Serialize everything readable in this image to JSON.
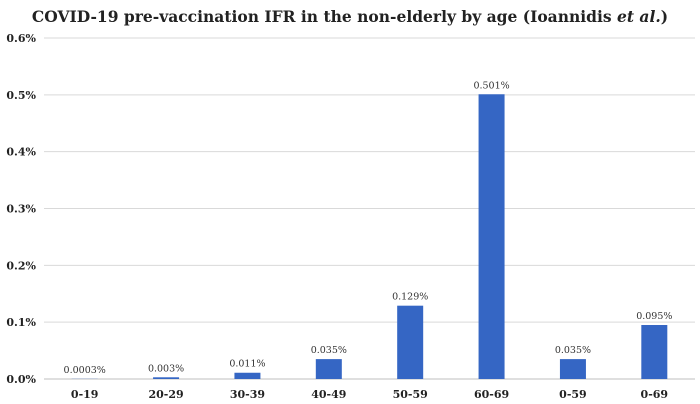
{
  "chart_data": {
    "type": "bar",
    "title_main": "COVID-19 pre-vaccination IFR in the non-elderly by age (Ioannidis ",
    "title_italic": "et al.",
    "title_end": ")",
    "categories": [
      "0-19",
      "20-29",
      "30-39",
      "40-49",
      "50-59",
      "60-69",
      "0-59",
      "0-69"
    ],
    "values": [
      0.0003,
      0.003,
      0.011,
      0.035,
      0.129,
      0.501,
      0.035,
      0.095
    ],
    "data_labels": [
      "0.0003%",
      "0.003%",
      "0.011%",
      "0.035%",
      "0.129%",
      "0.501%",
      "0.035%",
      "0.095%"
    ],
    "yticks": [
      0,
      0.1,
      0.2,
      0.3,
      0.4,
      0.5,
      0.6
    ],
    "ytick_labels": [
      "0.0%",
      "0.1%",
      "0.2%",
      "0.3%",
      "0.4%",
      "0.5%",
      "0.6%"
    ],
    "ylim": [
      0,
      0.6
    ],
    "xlabel": "",
    "ylabel": "",
    "grid": true,
    "bar_color": "#3566c4"
  }
}
